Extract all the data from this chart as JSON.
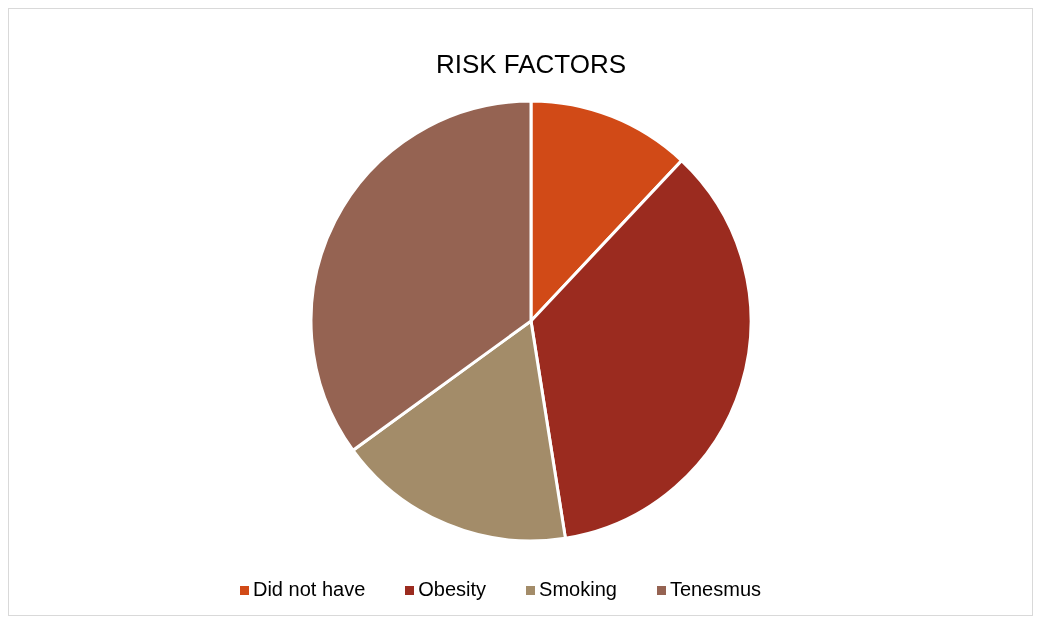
{
  "chart_data": {
    "type": "pie",
    "title": "RISK FACTORS",
    "categories": [
      "Did not have",
      "Obesity",
      "Smoking",
      "Tenesmus"
    ],
    "values": [
      12,
      35.5,
      17.5,
      35
    ],
    "colors": [
      "#d14a17",
      "#9b2b1f",
      "#a38c69",
      "#956352"
    ],
    "legend": "bottom"
  }
}
